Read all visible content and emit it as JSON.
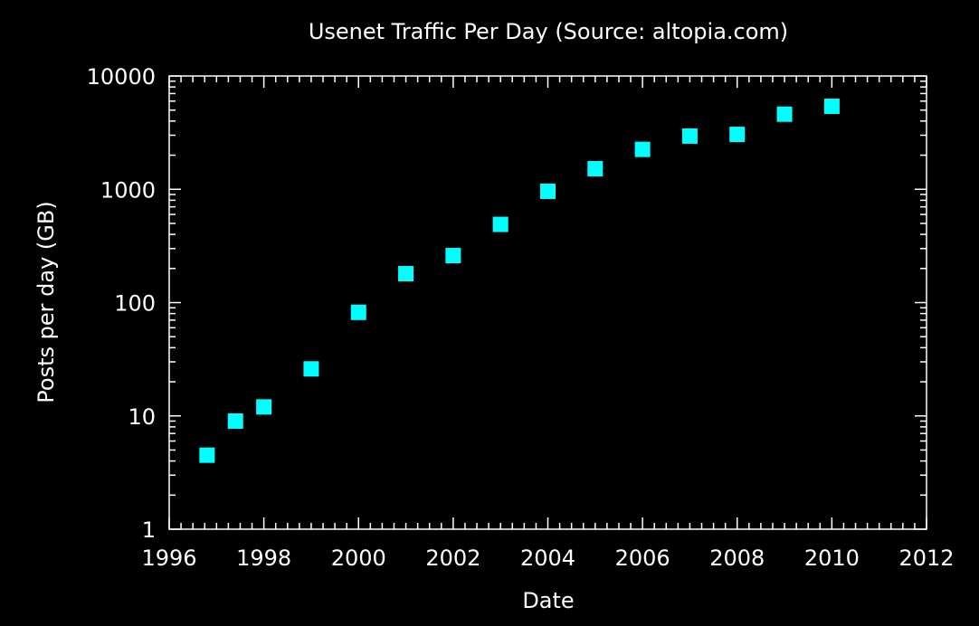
{
  "chart_data": {
    "type": "scatter",
    "title": "Usenet Traffic Per Day (Source: altopia.com)",
    "xlabel": "Date",
    "ylabel": "Posts per day (GB)",
    "xlim": [
      1996,
      2012
    ],
    "ylim": [
      1,
      10000
    ],
    "yscale": "log",
    "grid": false,
    "x_ticks": [
      1996,
      1998,
      2000,
      2002,
      2004,
      2006,
      2008,
      2010,
      2012
    ],
    "y_ticks": [
      1,
      10,
      100,
      1000,
      10000
    ],
    "x_tick_labels": [
      "1996",
      "1998",
      "2000",
      "2002",
      "2004",
      "2006",
      "2008",
      "2010",
      "2012"
    ],
    "y_tick_labels": [
      "1",
      "10",
      "100",
      "1000",
      "10000"
    ],
    "marker": "square",
    "marker_color": "#00ffff",
    "background_color": "#000000",
    "foreground_color": "#ffffff",
    "series": [
      {
        "x": [
          1996.8,
          1997.4,
          1998.0,
          1999.0,
          2000.0,
          2001.0,
          2002.0,
          2003.0,
          2004.0,
          2005.0,
          2006.0,
          2007.0,
          2008.0,
          2009.0,
          2010.0
        ],
        "y": [
          4.5,
          9,
          12,
          26,
          82,
          180,
          260,
          490,
          960,
          1520,
          2250,
          2950,
          3050,
          4600,
          5400
        ]
      }
    ]
  }
}
